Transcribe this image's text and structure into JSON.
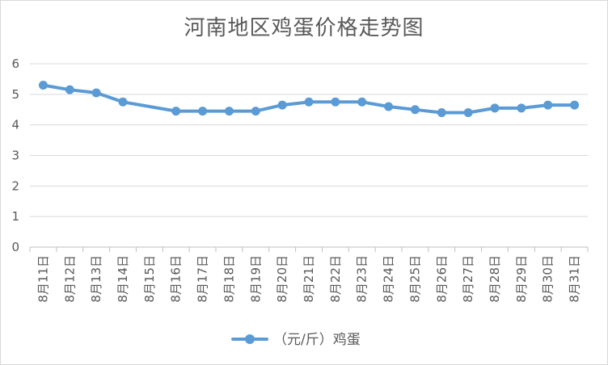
{
  "chart_data": {
    "type": "line",
    "title": "河南地区鸡蛋价格走势图",
    "categories": [
      "8月11日",
      "8月12日",
      "8月13日",
      "8月14日",
      "8月15日",
      "8月16日",
      "8月17日",
      "8月18日",
      "8月19日",
      "8月20日",
      "8月21日",
      "8月22日",
      "8月23日",
      "8月24日",
      "8月25日",
      "8月26日",
      "8月27日",
      "8月28日",
      "8月29日",
      "8月30日",
      "8月31日"
    ],
    "series": [
      {
        "name": "（元/斤）鸡蛋",
        "color": "#5b9bd5",
        "values": [
          5.3,
          5.15,
          5.05,
          4.75,
          null,
          4.45,
          4.45,
          4.45,
          4.45,
          4.65,
          4.75,
          4.75,
          4.75,
          4.6,
          4.5,
          4.4,
          4.4,
          4.55,
          4.55,
          4.65,
          4.65
        ]
      }
    ],
    "ylim": [
      0,
      6
    ],
    "yticks": [
      0,
      1,
      2,
      3,
      4,
      5,
      6
    ],
    "grid": true,
    "legend_position": "bottom"
  }
}
